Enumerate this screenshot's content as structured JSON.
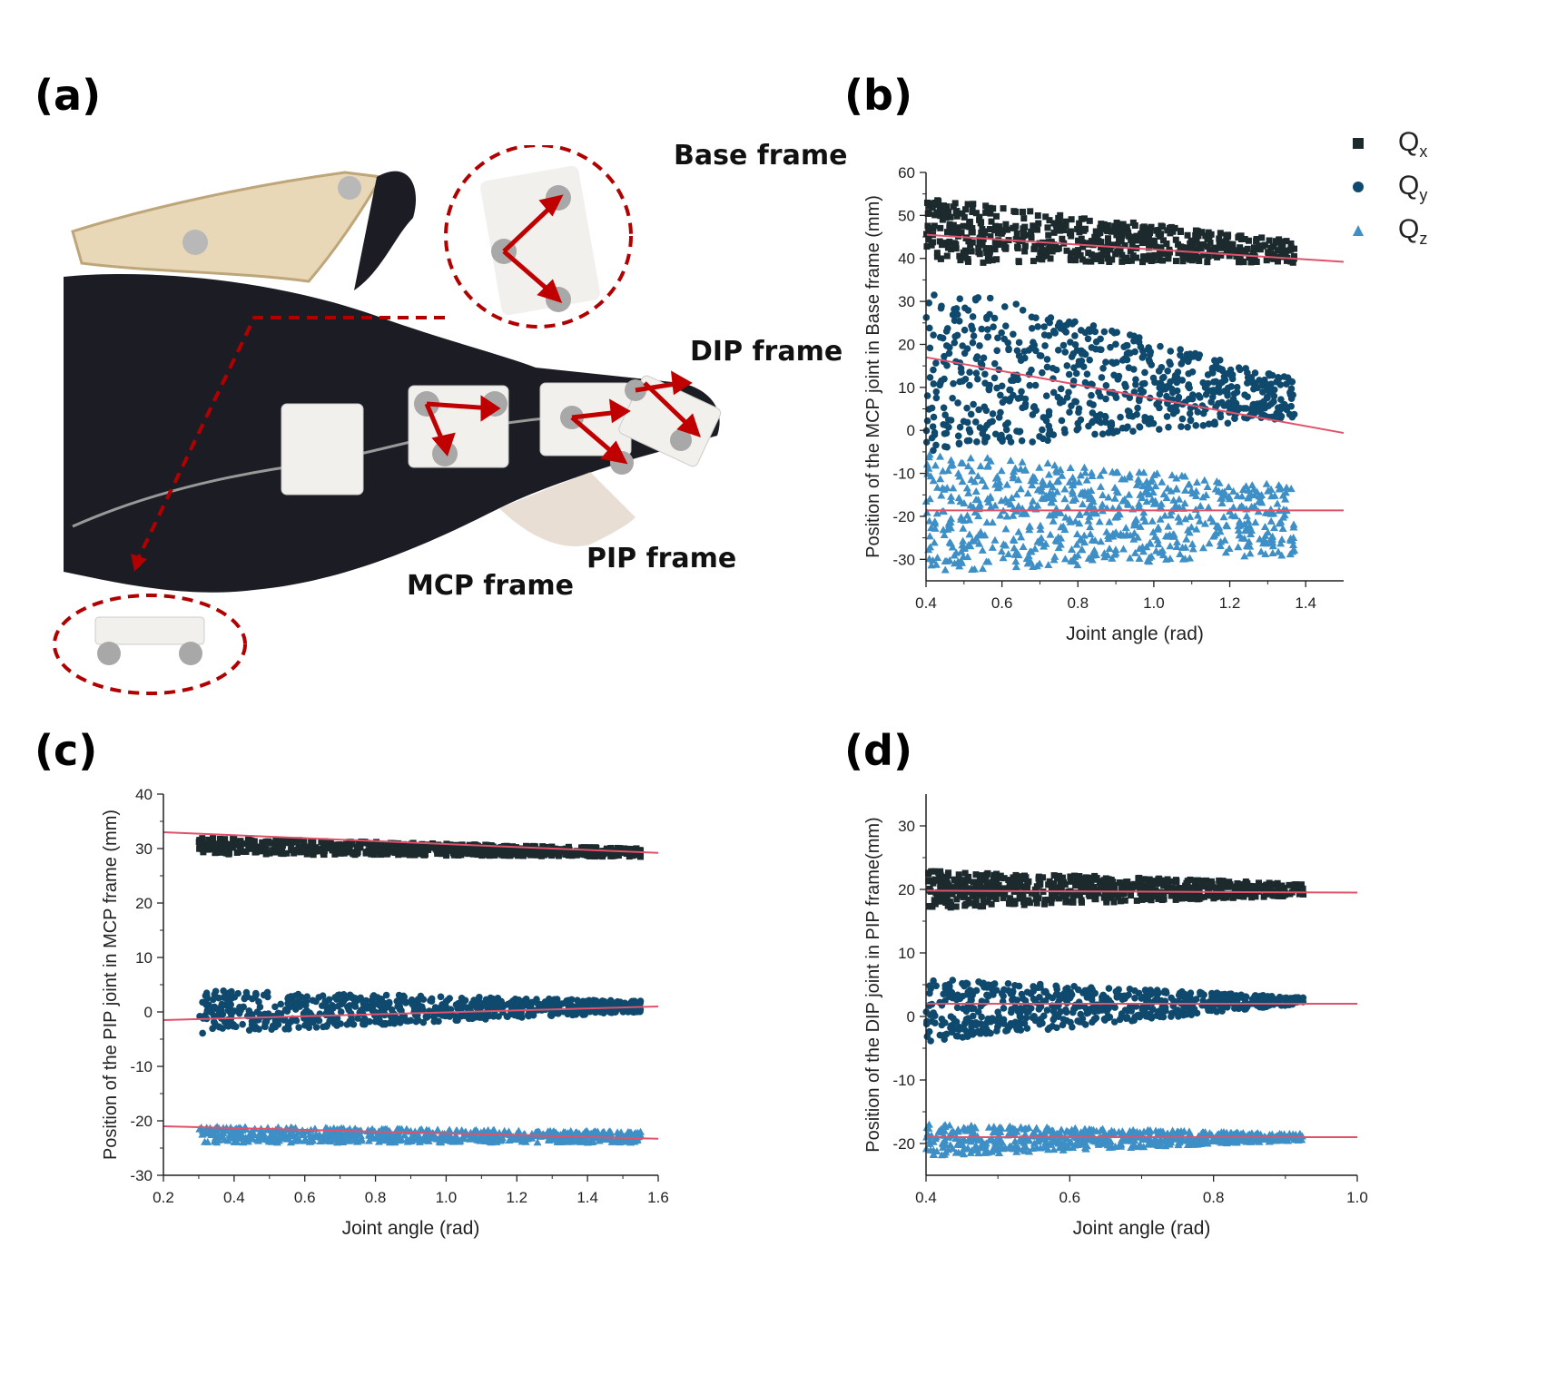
{
  "panels": {
    "a": "(a)",
    "b": "(b)",
    "c": "(c)",
    "d": "(d)"
  },
  "photo": {
    "labels": {
      "base": "Base frame",
      "dip": "DIP frame",
      "pip": "PIP frame",
      "mcp": "MCP frame"
    },
    "colors": {
      "arrow": "#c00000",
      "glove": "#1b1c24",
      "part": "#f2f0ec",
      "splint": "#e8d8b8"
    }
  },
  "legend": {
    "items": [
      {
        "symbol": "Q",
        "sub": "x",
        "marker": "square",
        "color": "#1c2a2e"
      },
      {
        "symbol": "Q",
        "sub": "y",
        "marker": "circle",
        "color": "#0f4a6e"
      },
      {
        "symbol": "Q",
        "sub": "z",
        "marker": "triangle",
        "color": "#3d8fc6"
      }
    ]
  },
  "chart_data": [
    {
      "id": "b",
      "type": "scatter",
      "xlabel": "Joint angle (rad)",
      "ylabel": "Position of the MCP joint in Base frame (mm)",
      "xlim": [
        0.4,
        1.5
      ],
      "ylim": [
        -35,
        60
      ],
      "xticks": [
        0.4,
        0.6,
        0.8,
        1.0,
        1.2,
        1.4
      ],
      "xtick_labels": [
        "0.4",
        "0.6",
        "0.8",
        "1.0",
        "1.2",
        "1.4"
      ],
      "yticks": [
        -30,
        -20,
        -10,
        0,
        10,
        20,
        30,
        40,
        50,
        60
      ],
      "series": [
        {
          "x_range": [
            0.4,
            1.37
          ],
          "values_start": [
            54,
            39
          ],
          "values_end": [
            44,
            39
          ],
          "spread": 7,
          "marker": "square",
          "color": "#1c2a2e",
          "count": 600
        },
        {
          "x_range": [
            0.4,
            1.37
          ],
          "values_start": [
            35,
            -5
          ],
          "values_end": [
            12,
            3
          ],
          "spread": 10,
          "marker": "circle",
          "color": "#0f4a6e",
          "count": 700
        },
        {
          "x_range": [
            0.4,
            1.37
          ],
          "values_start": [
            -5,
            -33
          ],
          "values_end": [
            -13,
            -29
          ],
          "spread": 8,
          "marker": "triangle",
          "color": "#3d8fc6",
          "count": 700
        }
      ],
      "fits": [
        {
          "x": [
            0.4,
            1.5
          ],
          "y": [
            45.5,
            39.2
          ]
        },
        {
          "x": [
            0.4,
            1.5
          ],
          "y": [
            17,
            -0.6
          ]
        },
        {
          "x": [
            0.4,
            1.5
          ],
          "y": [
            -18.6,
            -18.6
          ]
        }
      ],
      "fit_color": "#e0526a"
    },
    {
      "id": "c",
      "type": "scatter",
      "xlabel": "Joint angle (rad)",
      "ylabel": "Position of the PIP joint in MCP frame (mm)",
      "xlim": [
        0.2,
        1.6
      ],
      "ylim": [
        -30,
        40
      ],
      "xticks": [
        0.2,
        0.4,
        0.6,
        0.8,
        1.0,
        1.2,
        1.4,
        1.6
      ],
      "xtick_labels": [
        "0.2",
        "0.4",
        "0.6",
        "0.8",
        "1.0",
        "1.2",
        "1.4",
        "1.6"
      ],
      "yticks": [
        -30,
        -20,
        -10,
        0,
        10,
        20,
        30,
        40
      ],
      "series": [
        {
          "x_range": [
            0.3,
            1.55
          ],
          "values_start": [
            32,
            29
          ],
          "values_end": [
            30,
            28.5
          ],
          "spread": 2.5,
          "marker": "square",
          "color": "#1c2a2e",
          "count": 700
        },
        {
          "x_range": [
            0.3,
            1.55
          ],
          "values_start": [
            4,
            -4
          ],
          "values_end": [
            2,
            0
          ],
          "spread": 4,
          "marker": "circle",
          "color": "#0f4a6e",
          "count": 700
        },
        {
          "x_range": [
            0.3,
            1.55
          ],
          "values_start": [
            -21,
            -24
          ],
          "values_end": [
            -22,
            -24
          ],
          "spread": 2.5,
          "marker": "triangle",
          "color": "#3d8fc6",
          "count": 700
        }
      ],
      "fits": [
        {
          "x": [
            0.2,
            1.6
          ],
          "y": [
            33,
            29.2
          ]
        },
        {
          "x": [
            0.2,
            1.6
          ],
          "y": [
            -1.5,
            1
          ]
        },
        {
          "x": [
            0.2,
            1.6
          ],
          "y": [
            -21,
            -23.3
          ]
        }
      ],
      "fit_color": "#e0526a"
    },
    {
      "id": "d",
      "type": "scatter",
      "xlabel": "Joint angle (rad)",
      "ylabel": "Position of the DIP joint in PIP frame(mm)",
      "xlim": [
        0.4,
        1.0
      ],
      "ylim": [
        -25,
        35
      ],
      "xticks": [
        0.4,
        0.6,
        0.8,
        1.0
      ],
      "xtick_labels": [
        "0.4",
        "0.6",
        "0.8",
        "1.0"
      ],
      "yticks": [
        -20,
        -10,
        0,
        10,
        20,
        30
      ],
      "series": [
        {
          "x_range": [
            0.4,
            0.925
          ],
          "values_start": [
            23,
            17
          ],
          "values_end": [
            21,
            19
          ],
          "spread": 2.5,
          "marker": "square",
          "color": "#1c2a2e",
          "count": 650
        },
        {
          "x_range": [
            0.4,
            0.925
          ],
          "values_start": [
            6,
            -4
          ],
          "values_end": [
            3,
            2
          ],
          "spread": 4,
          "marker": "circle",
          "color": "#0f4a6e",
          "count": 650
        },
        {
          "x_range": [
            0.4,
            0.925
          ],
          "values_start": [
            -17,
            -22
          ],
          "values_end": [
            -18.5,
            -19.5
          ],
          "spread": 2.5,
          "marker": "triangle",
          "color": "#3d8fc6",
          "count": 650
        }
      ],
      "fits": [
        {
          "x": [
            0.4,
            1.0
          ],
          "y": [
            19.8,
            19.5
          ]
        },
        {
          "x": [
            0.4,
            1.0
          ],
          "y": [
            2.0,
            2.0
          ]
        },
        {
          "x": [
            0.4,
            1.0
          ],
          "y": [
            -19,
            -19
          ]
        }
      ],
      "fit_color": "#e0526a"
    }
  ]
}
